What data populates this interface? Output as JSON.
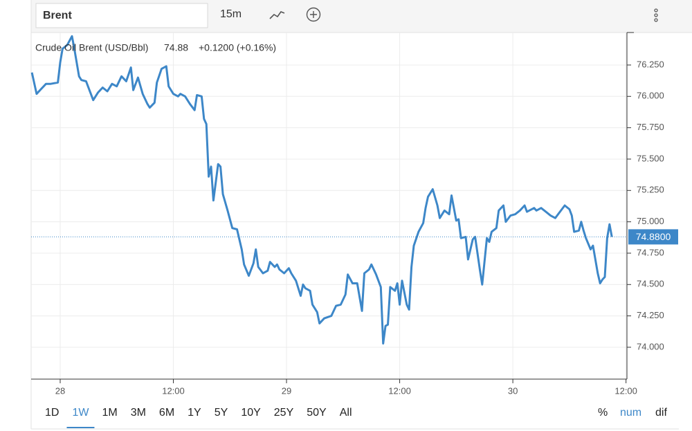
{
  "toolbar": {
    "symbol": "Brent",
    "interval": "15m"
  },
  "range_buttons": [
    "1D",
    "1W",
    "1M",
    "3M",
    "6M",
    "1Y",
    "5Y",
    "10Y",
    "25Y",
    "50Y",
    "All"
  ],
  "active_range": 1,
  "mode_buttons": [
    "%",
    "num",
    "dif"
  ],
  "active_mode": 1,
  "chart_data": {
    "type": "line",
    "price": 74.88,
    "change": "+0.1200 (+0.16%)",
    "x": [
      -3.0,
      -2.5,
      -2.0,
      -1.5,
      -1.0,
      -0.25,
      0,
      0.25,
      0.75,
      1.25,
      1.5,
      2.0,
      2.25,
      2.75,
      3.5,
      4.0,
      4.5,
      5.0,
      5.5,
      6.0,
      6.5,
      7.0,
      7.5,
      7.75,
      8.25,
      8.75,
      9.25,
      9.5,
      10.0,
      10.25,
      10.75,
      11.25,
      11.5,
      12.0,
      12.5,
      12.75,
      13.25,
      13.75,
      14.25,
      14.5,
      15.0,
      15.25,
      15.5,
      15.75,
      16.0,
      16.25,
      16.75,
      17.0,
      17.25,
      17.75,
      18.25,
      18.75,
      19.25,
      19.5,
      20.0,
      20.5,
      20.75,
      21.0,
      21.5,
      22.0,
      22.25,
      22.75,
      23.0,
      23.25,
      23.75,
      24.25,
      24.5,
      25.0,
      25.5,
      25.75,
      26.0,
      26.5,
      26.75,
      27.25,
      27.5,
      28.0,
      28.75,
      29.25,
      29.75,
      30.25,
      30.5,
      31.0,
      31.5,
      32.0,
      32.25,
      32.75,
      33.0,
      33.5,
      34.0,
      34.25,
      34.5,
      34.75,
      35.0,
      35.5,
      35.75,
      36.0,
      36.25,
      36.75,
      37.0,
      37.25,
      37.5,
      38.0,
      38.5,
      38.75,
      39.0,
      39.5,
      40.0,
      40.25,
      40.75,
      41.25,
      41.5,
      42.0,
      42.25,
      42.5,
      43.0,
      43.25,
      43.75,
      44.0,
      44.5,
      44.75,
      45.25,
      45.5,
      45.75,
      46.25,
      46.5,
      47.0,
      47.25,
      47.75,
      48.25,
      48.75,
      49.25,
      49.5,
      50.25,
      50.5,
      51.0,
      51.5,
      52.0,
      52.5,
      53.0,
      53.5,
      54.0,
      54.25,
      54.5,
      55.0,
      55.25,
      55.5,
      55.75,
      56.25,
      56.5,
      57.0,
      57.25,
      57.5,
      57.75,
      58.0,
      58.25,
      58.5
    ],
    "series": [
      {
        "name": "Crude Oil Brent (USD/Bbl)",
        "color": "#3d87c8",
        "values": [
          76.19,
          76.02,
          76.06,
          76.1,
          76.1,
          76.11,
          76.27,
          76.38,
          76.41,
          76.48,
          76.38,
          76.16,
          76.13,
          76.12,
          75.97,
          76.03,
          76.07,
          76.04,
          76.1,
          76.08,
          76.16,
          76.12,
          76.23,
          76.05,
          76.15,
          76.02,
          75.94,
          75.91,
          75.95,
          76.11,
          76.22,
          76.24,
          76.08,
          76.02,
          76.0,
          76.02,
          76.0,
          75.94,
          75.89,
          76.01,
          76.0,
          75.82,
          75.78,
          75.36,
          75.44,
          75.17,
          75.46,
          75.44,
          75.22,
          75.09,
          74.95,
          74.94,
          74.78,
          74.66,
          74.57,
          74.67,
          74.78,
          74.64,
          74.59,
          74.61,
          74.68,
          74.64,
          74.66,
          74.62,
          74.59,
          74.63,
          74.59,
          74.53,
          74.41,
          74.5,
          74.47,
          74.45,
          74.34,
          74.28,
          74.19,
          74.23,
          74.25,
          74.33,
          74.34,
          74.42,
          74.58,
          74.51,
          74.51,
          74.29,
          74.59,
          74.62,
          74.66,
          74.58,
          74.48,
          74.03,
          74.17,
          74.18,
          74.48,
          74.45,
          74.51,
          74.34,
          74.53,
          74.34,
          74.3,
          74.64,
          74.81,
          74.92,
          74.99,
          75.11,
          75.2,
          75.26,
          75.13,
          75.03,
          75.09,
          75.06,
          75.21,
          75.01,
          75.02,
          74.87,
          74.88,
          74.7,
          74.86,
          74.88,
          74.62,
          74.5,
          74.87,
          74.84,
          74.92,
          74.95,
          75.09,
          75.13,
          75.0,
          75.05,
          75.06,
          75.09,
          75.13,
          75.08,
          75.11,
          75.09,
          75.11,
          75.08,
          75.05,
          75.03,
          75.08,
          75.13,
          75.1,
          75.05,
          74.92,
          74.93,
          75.0,
          74.93,
          74.87,
          74.78,
          74.81,
          74.59,
          74.51,
          74.54,
          74.56,
          74.87,
          74.98,
          74.88
        ]
      }
    ],
    "last_price": {
      "value": 74.88,
      "label": "74.8800"
    },
    "xlim": [
      -3.08,
      60.1
    ],
    "xticks": [
      {
        "value": 0,
        "label": "28"
      },
      {
        "value": 12,
        "label": "12:00"
      },
      {
        "value": 24,
        "label": "29"
      },
      {
        "value": 36,
        "label": "12:00"
      },
      {
        "value": 48,
        "label": "30"
      },
      {
        "value": 60,
        "label": "12:00"
      }
    ],
    "ylim": [
      73.746,
      76.509
    ],
    "yticks": [
      {
        "value": 74,
        "label": "74.000"
      },
      {
        "value": 74.25,
        "label": "74.250"
      },
      {
        "value": 74.5,
        "label": "74.500"
      },
      {
        "value": 74.75,
        "label": "74.750"
      },
      {
        "value": 75,
        "label": "75.000"
      },
      {
        "value": 75.25,
        "label": "75.250"
      },
      {
        "value": 75.5,
        "label": "75.500"
      },
      {
        "value": 75.75,
        "label": "75.750"
      },
      {
        "value": 76,
        "label": "76.000"
      },
      {
        "value": 76.25,
        "label": "76.250"
      }
    ],
    "grid": true,
    "price_color": "#e0403a"
  }
}
